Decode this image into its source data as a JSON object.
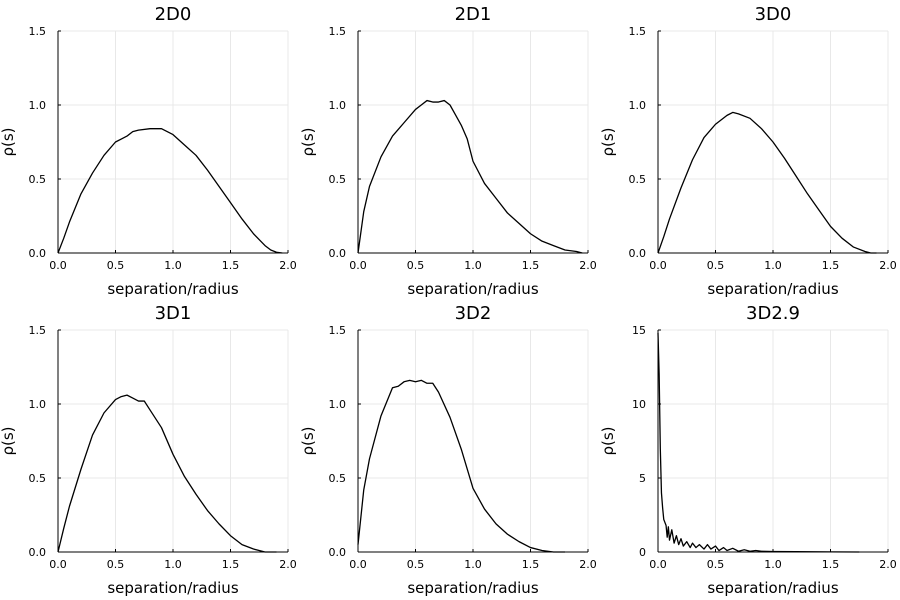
{
  "chart_data": [
    {
      "type": "line",
      "title": "2D0",
      "xlabel": "separation/radius",
      "ylabel": "ρ(s)",
      "xlim": [
        0,
        2
      ],
      "ylim": [
        0,
        1.5
      ],
      "xticks": [
        0,
        0.5,
        1,
        1.5,
        2
      ],
      "xtick_labels": [
        "0.0",
        "0.5",
        "1.0",
        "1.5",
        "2.0"
      ],
      "yticks": [
        0,
        0.5,
        1,
        1.5
      ],
      "ytick_labels": [
        "0.0",
        "0.5",
        "1.0",
        "1.5"
      ],
      "grid": true,
      "series": [
        {
          "x": [
            0,
            0.05,
            0.1,
            0.2,
            0.3,
            0.4,
            0.5,
            0.55,
            0.6,
            0.65,
            0.7,
            0.8,
            0.9,
            1.0,
            1.1,
            1.2,
            1.3,
            1.4,
            1.5,
            1.6,
            1.7,
            1.8,
            1.85,
            1.9,
            1.95
          ],
          "y": [
            0.0,
            0.1,
            0.21,
            0.4,
            0.54,
            0.66,
            0.75,
            0.77,
            0.79,
            0.82,
            0.83,
            0.84,
            0.84,
            0.8,
            0.73,
            0.66,
            0.56,
            0.45,
            0.34,
            0.23,
            0.13,
            0.05,
            0.02,
            0.005,
            0.0
          ]
        }
      ]
    },
    {
      "type": "line",
      "title": "2D1",
      "xlabel": "separation/radius",
      "ylabel": "ρ(s)",
      "xlim": [
        0,
        2
      ],
      "ylim": [
        0,
        1.5
      ],
      "xticks": [
        0,
        0.5,
        1,
        1.5,
        2
      ],
      "xtick_labels": [
        "0.0",
        "0.5",
        "1.0",
        "1.5",
        "2.0"
      ],
      "yticks": [
        0,
        0.5,
        1,
        1.5
      ],
      "ytick_labels": [
        "0.0",
        "0.5",
        "1.0",
        "1.5"
      ],
      "grid": true,
      "series": [
        {
          "x": [
            0,
            0.05,
            0.1,
            0.2,
            0.3,
            0.4,
            0.5,
            0.55,
            0.6,
            0.65,
            0.7,
            0.75,
            0.8,
            0.85,
            0.9,
            0.95,
            1.0,
            1.1,
            1.2,
            1.3,
            1.4,
            1.5,
            1.6,
            1.7,
            1.8,
            1.9,
            1.95
          ],
          "y": [
            0.0,
            0.28,
            0.45,
            0.65,
            0.79,
            0.88,
            0.97,
            1.0,
            1.03,
            1.02,
            1.02,
            1.03,
            1.0,
            0.93,
            0.86,
            0.77,
            0.62,
            0.47,
            0.37,
            0.27,
            0.2,
            0.13,
            0.08,
            0.05,
            0.02,
            0.01,
            0.0
          ]
        }
      ]
    },
    {
      "type": "line",
      "title": "3D0",
      "xlabel": "separation/radius",
      "ylabel": "ρ(s)",
      "xlim": [
        0,
        2
      ],
      "ylim": [
        0,
        1.5
      ],
      "xticks": [
        0,
        0.5,
        1,
        1.5,
        2
      ],
      "xtick_labels": [
        "0.0",
        "0.5",
        "1.0",
        "1.5",
        "2.0"
      ],
      "yticks": [
        0,
        0.5,
        1,
        1.5
      ],
      "ytick_labels": [
        "0.0",
        "0.5",
        "1.0",
        "1.5"
      ],
      "grid": true,
      "series": [
        {
          "x": [
            0,
            0.05,
            0.1,
            0.2,
            0.3,
            0.4,
            0.5,
            0.6,
            0.65,
            0.7,
            0.8,
            0.9,
            1.0,
            1.1,
            1.2,
            1.3,
            1.4,
            1.5,
            1.6,
            1.7,
            1.8,
            1.85,
            1.9
          ],
          "y": [
            0.0,
            0.11,
            0.23,
            0.44,
            0.63,
            0.78,
            0.87,
            0.93,
            0.95,
            0.94,
            0.91,
            0.84,
            0.75,
            0.64,
            0.52,
            0.4,
            0.29,
            0.18,
            0.1,
            0.04,
            0.01,
            0.0,
            0.0
          ]
        }
      ]
    },
    {
      "type": "line",
      "title": "3D1",
      "xlabel": "separation/radius",
      "ylabel": "ρ(s)",
      "xlim": [
        0,
        2
      ],
      "ylim": [
        0,
        1.5
      ],
      "xticks": [
        0,
        0.5,
        1,
        1.5,
        2
      ],
      "xtick_labels": [
        "0.0",
        "0.5",
        "1.0",
        "1.5",
        "2.0"
      ],
      "yticks": [
        0,
        0.5,
        1,
        1.5
      ],
      "ytick_labels": [
        "0.0",
        "0.5",
        "1.0",
        "1.5"
      ],
      "grid": true,
      "series": [
        {
          "x": [
            0,
            0.05,
            0.1,
            0.2,
            0.3,
            0.4,
            0.5,
            0.55,
            0.6,
            0.65,
            0.7,
            0.75,
            0.8,
            0.9,
            1.0,
            1.1,
            1.2,
            1.3,
            1.4,
            1.5,
            1.6,
            1.7,
            1.8,
            1.9
          ],
          "y": [
            0.0,
            0.16,
            0.31,
            0.56,
            0.79,
            0.94,
            1.03,
            1.05,
            1.06,
            1.04,
            1.02,
            1.02,
            0.96,
            0.84,
            0.66,
            0.51,
            0.39,
            0.28,
            0.19,
            0.11,
            0.05,
            0.02,
            0.0,
            0.0
          ]
        }
      ]
    },
    {
      "type": "line",
      "title": "3D2",
      "xlabel": "separation/radius",
      "ylabel": "ρ(s)",
      "xlim": [
        0,
        2
      ],
      "ylim": [
        0,
        1.5
      ],
      "xticks": [
        0,
        0.5,
        1,
        1.5,
        2
      ],
      "xtick_labels": [
        "0.0",
        "0.5",
        "1.0",
        "1.5",
        "2.0"
      ],
      "yticks": [
        0,
        0.5,
        1,
        1.5
      ],
      "ytick_labels": [
        "0.0",
        "0.5",
        "1.0",
        "1.5"
      ],
      "grid": true,
      "series": [
        {
          "x": [
            0,
            0.05,
            0.1,
            0.2,
            0.3,
            0.35,
            0.4,
            0.45,
            0.5,
            0.55,
            0.6,
            0.65,
            0.7,
            0.8,
            0.9,
            1.0,
            1.1,
            1.2,
            1.3,
            1.4,
            1.5,
            1.6,
            1.7,
            1.8
          ],
          "y": [
            0.05,
            0.42,
            0.63,
            0.92,
            1.11,
            1.12,
            1.15,
            1.16,
            1.15,
            1.16,
            1.14,
            1.14,
            1.08,
            0.91,
            0.69,
            0.43,
            0.29,
            0.19,
            0.12,
            0.07,
            0.03,
            0.01,
            0.0,
            0.0
          ]
        }
      ]
    },
    {
      "type": "line",
      "title": "3D2.9",
      "xlabel": "separation/radius",
      "ylabel": "ρ(s)",
      "xlim": [
        0,
        2
      ],
      "ylim": [
        0,
        15
      ],
      "xticks": [
        0,
        0.5,
        1,
        1.5,
        2
      ],
      "xtick_labels": [
        "0.0",
        "0.5",
        "1.0",
        "1.5",
        "2.0"
      ],
      "yticks": [
        0,
        5,
        10,
        15
      ],
      "ytick_labels": [
        "0",
        "5",
        "10",
        "15"
      ],
      "grid": true,
      "series": [
        {
          "x": [
            0.0,
            0.01,
            0.02,
            0.03,
            0.04,
            0.05,
            0.07,
            0.08,
            0.09,
            0.1,
            0.12,
            0.14,
            0.16,
            0.18,
            0.2,
            0.22,
            0.25,
            0.28,
            0.3,
            0.33,
            0.36,
            0.4,
            0.43,
            0.46,
            0.5,
            0.53,
            0.57,
            0.6,
            0.65,
            0.7,
            0.75,
            0.8,
            0.85,
            0.9,
            1.0,
            1.2,
            1.5,
            1.75
          ],
          "y": [
            14.8,
            12.0,
            7.0,
            4.0,
            3.0,
            2.2,
            1.8,
            1.0,
            1.7,
            0.8,
            1.5,
            0.6,
            1.1,
            0.5,
            0.9,
            0.4,
            0.7,
            0.3,
            0.6,
            0.3,
            0.5,
            0.2,
            0.5,
            0.2,
            0.4,
            0.1,
            0.3,
            0.1,
            0.25,
            0.05,
            0.15,
            0.05,
            0.1,
            0.05,
            0.03,
            0.02,
            0.01,
            0.0
          ]
        }
      ]
    }
  ]
}
